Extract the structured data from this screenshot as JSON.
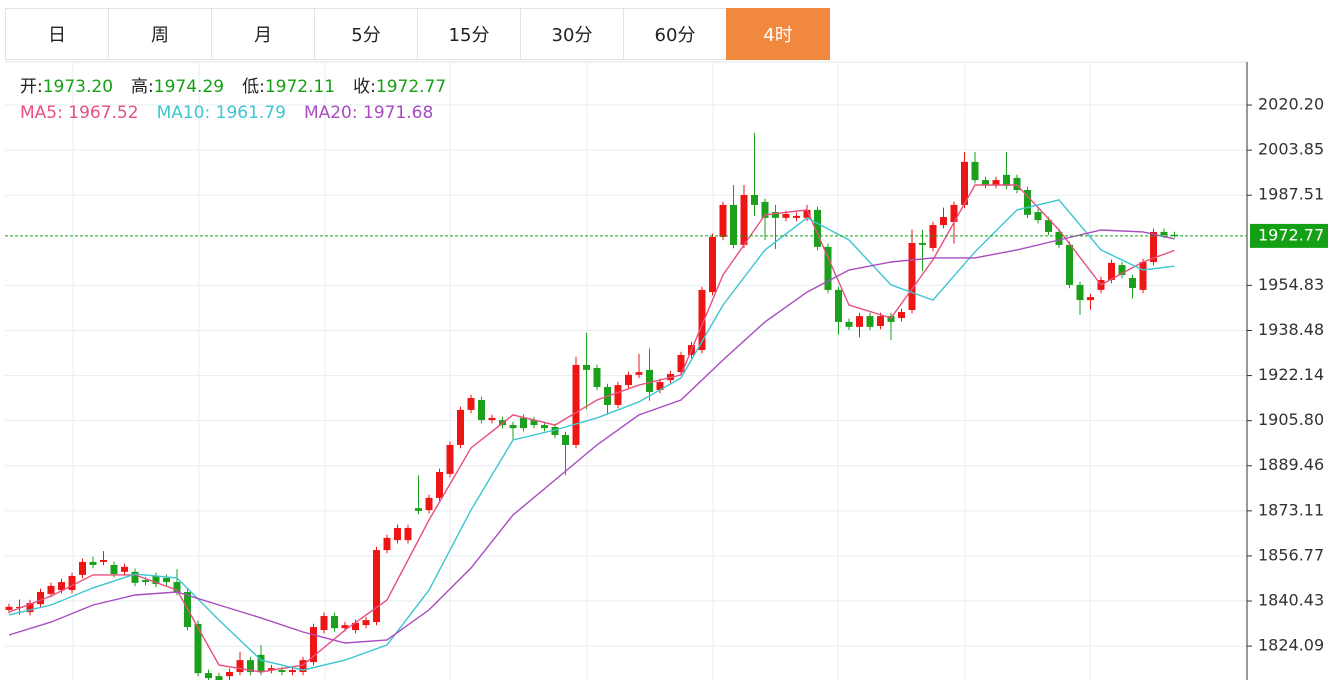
{
  "tabs": {
    "items": [
      "日",
      "周",
      "月",
      "5分",
      "15分",
      "30分",
      "60分",
      "4时"
    ],
    "active": 7
  },
  "quote": {
    "value_color": "#14a014",
    "items": [
      {
        "label": "开:",
        "value": "1973.20"
      },
      {
        "label": "高:",
        "value": "1974.29"
      },
      {
        "label": "低:",
        "value": "1972.11"
      },
      {
        "label": "收:",
        "value": "1972.77"
      }
    ],
    "ma": [
      {
        "label": "MA5:",
        "value": "1967.52",
        "color": "#e8507e"
      },
      {
        "label": "MA10:",
        "value": "1961.79",
        "color": "#3cc6d2"
      },
      {
        "label": "MA20:",
        "value": "1971.68",
        "color": "#a84cc0"
      }
    ]
  },
  "chart_data": {
    "type": "candlestick",
    "up_color": "#ee1515",
    "down_color": "#1aa01a",
    "last_price_color": "#14a014",
    "grid": true,
    "ylim": [
      1811.8,
      2035.8
    ],
    "yticks": [
      1824.09,
      1840.43,
      1856.77,
      1873.11,
      1889.46,
      {
        "value": 1905.8,
        "label": "1905.80"
      },
      1922.14,
      1938.48,
      1954.83,
      1987.51,
      2003.85,
      {
        "value": 2020.2,
        "label": "2020.20"
      }
    ],
    "open": [
      1837.2,
      1837.9,
      1836.4,
      1839.3,
      1843.0,
      1844.4,
      1844.4,
      1849.9,
      1854.6,
      1854.6,
      1853.5,
      1851.0,
      1851.0,
      1848.0,
      1849.5,
      1848.8,
      1847.3,
      1843.7,
      1832.1,
      1814.3,
      1813.2,
      1813.2,
      1814.7,
      1819.0,
      1820.9,
      1815.4,
      1815.4,
      1814.7,
      1814.7,
      1818.3,
      1829.9,
      1835.0,
      1830.6,
      1829.9,
      1831.7,
      1832.8,
      1858.9,
      1862.5,
      1862.5,
      1874.1,
      1873.4,
      1877.8,
      1886.5,
      1897.0,
      1909.7,
      1913.3,
      1906.0,
      1906.0,
      1904.2,
      1906.8,
      1906.0,
      1904.2,
      1903.5,
      1900.6,
      1897.0,
      1926.0,
      1924.9,
      1918.0,
      1911.5,
      1918.7,
      1922.4,
      1924.2,
      1916.9,
      1920.5,
      1923.4,
      1929.6,
      1931.4,
      1952.4,
      1972.4,
      1984.0,
      1969.5,
      1987.6,
      1985.1,
      1981.4,
      1979.3,
      1979.3,
      1979.3,
      1982.2,
      1968.8,
      1953.2,
      1941.6,
      1939.8,
      1943.7,
      1940.1,
      1943.7,
      1943.0,
      1945.9,
      1970.2,
      1968.4,
      1976.7,
      1977.8,
      1984.0,
      1999.6,
      1993.0,
      1991.2,
      1994.9,
      1993.8,
      1989.4,
      1981.4,
      1978.5,
      1974.2,
      1969.5,
      1955.0,
      1949.5,
      1953.2,
      1956.8,
      1962.2,
      1957.5,
      1953.2,
      1963.3,
      1974.2,
      1973.2
    ],
    "high": [
      1839.5,
      1841.0,
      1840.9,
      1844.9,
      1847.1,
      1848.5,
      1850.7,
      1855.8,
      1856.5,
      1858.5,
      1854.7,
      1854.0,
      1852.2,
      1849.2,
      1850.7,
      1850.0,
      1852.0,
      1844.9,
      1833.3,
      1815.5,
      1814.4,
      1815.9,
      1822.0,
      1820.2,
      1824.5,
      1817.3,
      1816.6,
      1816.6,
      1820.2,
      1832.2,
      1836.2,
      1836.2,
      1832.9,
      1833.7,
      1834.7,
      1860.1,
      1864.5,
      1868.1,
      1868.1,
      1886.0,
      1879.0,
      1888.4,
      1898.2,
      1910.9,
      1915.2,
      1914.5,
      1908.0,
      1907.2,
      1905.4,
      1908.0,
      1907.2,
      1905.4,
      1904.7,
      1901.8,
      1929.0,
      1937.6,
      1926.1,
      1919.2,
      1919.9,
      1923.6,
      1930.0,
      1932.0,
      1921.0,
      1923.9,
      1930.8,
      1934.4,
      1954.4,
      1973.6,
      1985.2,
      1991.2,
      1991.2,
      2010.1,
      1986.3,
      1984.0,
      1981.9,
      1981.2,
      1984.0,
      1983.4,
      1970.0,
      1954.4,
      1942.8,
      1944.9,
      1944.9,
      1944.9,
      1944.9,
      1946.4,
      1975.0,
      1975.0,
      1977.9,
      1983.0,
      1985.2,
      2003.2,
      2003.2,
      1994.2,
      1994.2,
      2003.2,
      1995.0,
      1990.6,
      1982.6,
      1979.7,
      1975.4,
      1970.7,
      1956.2,
      1951.8,
      1958.0,
      1964.2,
      1963.4,
      1958.7,
      1964.5,
      1975.4,
      1975.4,
      1974.29
    ],
    "low": [
      1836.0,
      1835.5,
      1835.2,
      1838.1,
      1841.8,
      1843.2,
      1843.2,
      1848.7,
      1852.3,
      1853.4,
      1849.0,
      1849.8,
      1845.8,
      1846.1,
      1845.4,
      1846.1,
      1842.5,
      1829.8,
      1813.1,
      1811.8,
      1811.8,
      1811.8,
      1813.5,
      1813.5,
      1813.5,
      1814.2,
      1813.5,
      1813.5,
      1813.5,
      1817.1,
      1828.7,
      1829.4,
      1829.4,
      1828.7,
      1830.5,
      1831.6,
      1857.7,
      1861.3,
      1861.3,
      1871.9,
      1872.2,
      1876.6,
      1885.3,
      1895.8,
      1908.5,
      1904.8,
      1904.8,
      1903.0,
      1899.0,
      1901.9,
      1903.0,
      1901.9,
      1899.4,
      1886.1,
      1895.8,
      1910.0,
      1916.8,
      1908.0,
      1910.3,
      1917.5,
      1921.2,
      1913.0,
      1915.7,
      1919.3,
      1922.2,
      1928.4,
      1930.2,
      1951.2,
      1971.2,
      1968.3,
      1968.3,
      1980.0,
      1971.3,
      1968.0,
      1978.1,
      1978.1,
      1978.1,
      1967.6,
      1952.0,
      1937.0,
      1938.6,
      1936.0,
      1938.6,
      1938.9,
      1935.0,
      1941.8,
      1944.7,
      1960.0,
      1967.2,
      1975.5,
      1970.0,
      1982.8,
      1991.8,
      1990.0,
      1990.0,
      1989.7,
      1988.2,
      1979.2,
      1977.3,
      1973.0,
      1968.3,
      1953.8,
      1944.1,
      1946.0,
      1952.0,
      1955.6,
      1957.4,
      1950.0,
      1952.0,
      1962.1,
      1971.9,
      1972.11
    ],
    "close": [
      1838.3,
      1838.3,
      1839.7,
      1843.7,
      1845.9,
      1847.3,
      1849.5,
      1854.6,
      1853.5,
      1855.3,
      1850.2,
      1852.8,
      1847.0,
      1847.3,
      1846.6,
      1847.3,
      1843.7,
      1831.0,
      1814.3,
      1812.5,
      1811.8,
      1814.7,
      1819.0,
      1814.7,
      1814.7,
      1816.1,
      1814.7,
      1815.4,
      1819.0,
      1831.0,
      1835.0,
      1830.6,
      1831.7,
      1832.5,
      1833.5,
      1858.9,
      1863.3,
      1866.9,
      1866.9,
      1873.1,
      1877.8,
      1887.2,
      1897.0,
      1909.7,
      1914.0,
      1906.0,
      1906.8,
      1904.2,
      1903.1,
      1903.1,
      1904.2,
      1903.1,
      1900.6,
      1897.0,
      1926.0,
      1924.2,
      1918.0,
      1911.5,
      1918.7,
      1922.4,
      1923.4,
      1916.2,
      1919.8,
      1922.7,
      1929.6,
      1933.2,
      1953.2,
      1972.4,
      1984.0,
      1969.5,
      1987.6,
      1984.0,
      1979.3,
      1979.3,
      1980.7,
      1980.0,
      1982.2,
      1968.8,
      1953.2,
      1941.6,
      1939.8,
      1943.7,
      1939.8,
      1943.7,
      1941.6,
      1945.2,
      1970.2,
      1969.5,
      1976.7,
      1979.6,
      1984.0,
      1999.6,
      1993.0,
      1991.2,
      1993.0,
      1990.9,
      1989.4,
      1980.4,
      1978.5,
      1974.2,
      1969.5,
      1955.0,
      1949.5,
      1950.6,
      1956.8,
      1963.0,
      1958.6,
      1953.9,
      1963.3,
      1974.2,
      1973.1,
      1972.77
    ],
    "series": [
      {
        "type": "line",
        "color": "#e8507e",
        "x": [
          0,
          4,
          8,
          12,
          16,
          20,
          24,
          28,
          32,
          36,
          40,
          44,
          48,
          52,
          56,
          60,
          64,
          68,
          72,
          76,
          80,
          84,
          88,
          92,
          96,
          100,
          104,
          108,
          111
        ],
        "values": [
          1836.4,
          1842.2,
          1849.9,
          1849.9,
          1844.4,
          1817.2,
          1814.7,
          1817.2,
          1829.9,
          1840.8,
          1869.8,
          1895.9,
          1907.9,
          1904.2,
          1913.3,
          1918.7,
          1922.4,
          1958.6,
          1980.4,
          1982.2,
          1947.7,
          1943.0,
          1964.1,
          1991.2,
          1991.2,
          1974.9,
          1955.0,
          1963.3,
          1967.52
        ]
      },
      {
        "type": "line",
        "color": "#3cc6d2",
        "x": [
          0,
          4,
          8,
          12,
          16,
          20,
          24,
          28,
          32,
          36,
          40,
          44,
          48,
          52,
          56,
          60,
          64,
          68,
          72,
          76,
          80,
          84,
          88,
          92,
          96,
          100,
          104,
          108,
          111
        ],
        "values": [
          1835.4,
          1839.0,
          1845.2,
          1850.2,
          1848.8,
          1833.5,
          1819.0,
          1815.4,
          1819.0,
          1824.5,
          1844.4,
          1873.4,
          1898.8,
          1902.4,
          1906.8,
          1912.6,
          1921.3,
          1947.7,
          1967.7,
          1979.3,
          1971.3,
          1955.0,
          1949.5,
          1967.0,
          1982.2,
          1985.8,
          1967.7,
          1960.4,
          1961.79
        ]
      },
      {
        "type": "line",
        "color": "#a84cc0",
        "x": [
          0,
          4,
          8,
          12,
          16,
          20,
          24,
          28,
          32,
          36,
          40,
          44,
          48,
          52,
          56,
          60,
          64,
          68,
          72,
          76,
          80,
          84,
          88,
          92,
          96,
          100,
          104,
          108,
          111
        ],
        "values": [
          1828.1,
          1832.8,
          1839.0,
          1842.6,
          1843.7,
          1839.0,
          1834.3,
          1829.2,
          1825.2,
          1826.3,
          1837.2,
          1852.4,
          1871.6,
          1884.3,
          1897.0,
          1907.9,
          1913.3,
          1927.8,
          1941.6,
          1952.4,
          1960.4,
          1963.3,
          1964.8,
          1964.8,
          1967.7,
          1971.3,
          1974.9,
          1974.2,
          1971.68
        ]
      }
    ]
  }
}
